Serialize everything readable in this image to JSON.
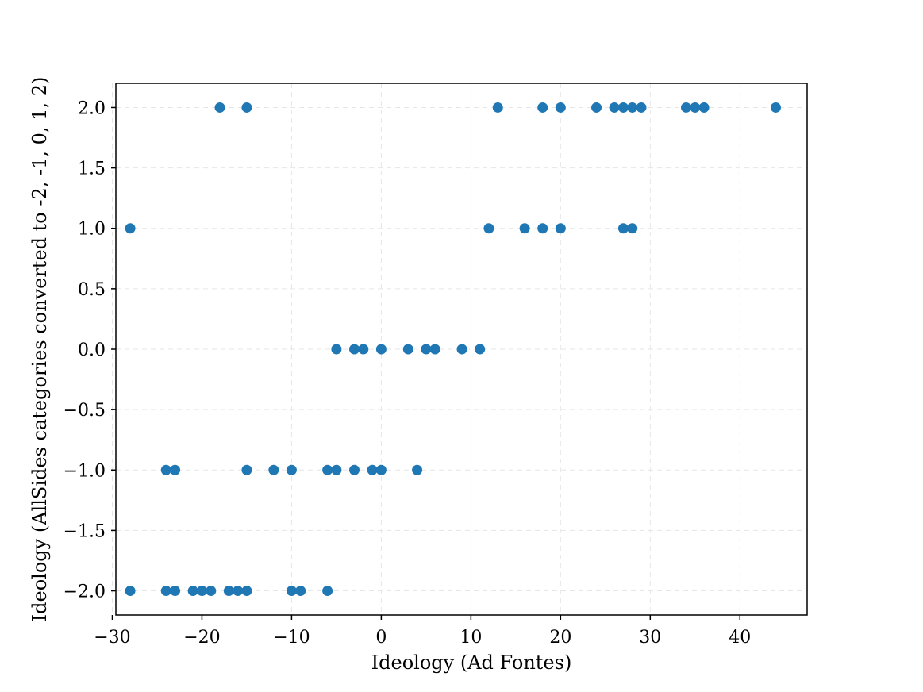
{
  "chart_data": {
    "type": "scatter",
    "title": "",
    "xlabel": "Ideology (Ad Fontes)",
    "ylabel": "Ideology (AllSides categories converted to -2, -1, 0, 1, 2)",
    "xlim": [
      -29.6,
      47.5
    ],
    "ylim": [
      -2.2,
      2.2
    ],
    "xticks": [
      -30,
      -20,
      -10,
      0,
      10,
      20,
      30,
      40
    ],
    "xtick_labels": [
      "−30",
      "−20",
      "−10",
      "0",
      "10",
      "20",
      "30",
      "40"
    ],
    "yticks": [
      -2.0,
      -1.5,
      -1.0,
      -0.5,
      0.0,
      0.5,
      1.0,
      1.5,
      2.0
    ],
    "ytick_labels": [
      "−2.0",
      "−1.5",
      "−1.0",
      "−0.5",
      "0.0",
      "0.5",
      "1.0",
      "1.5",
      "2.0"
    ],
    "grid": true,
    "marker_color": "#1f77b4",
    "series": [
      {
        "points": [
          [
            -18,
            2
          ],
          [
            -15,
            2
          ],
          [
            13,
            2
          ],
          [
            18,
            2
          ],
          [
            20,
            2
          ],
          [
            24,
            2
          ],
          [
            26,
            2
          ],
          [
            27,
            2
          ],
          [
            28,
            2
          ],
          [
            29,
            2
          ],
          [
            34,
            2
          ],
          [
            35,
            2
          ],
          [
            36,
            2
          ],
          [
            44,
            2
          ],
          [
            -28,
            1
          ],
          [
            12,
            1
          ],
          [
            16,
            1
          ],
          [
            18,
            1
          ],
          [
            20,
            1
          ],
          [
            27,
            1
          ],
          [
            28,
            1
          ],
          [
            -5,
            0
          ],
          [
            -3,
            0
          ],
          [
            -2,
            0
          ],
          [
            0,
            0
          ],
          [
            3,
            0
          ],
          [
            5,
            0
          ],
          [
            6,
            0
          ],
          [
            9,
            0
          ],
          [
            11,
            0
          ],
          [
            -24,
            -1
          ],
          [
            -23,
            -1
          ],
          [
            -15,
            -1
          ],
          [
            -12,
            -1
          ],
          [
            -10,
            -1
          ],
          [
            -6,
            -1
          ],
          [
            -5,
            -1
          ],
          [
            -3,
            -1
          ],
          [
            -1,
            -1
          ],
          [
            0,
            -1
          ],
          [
            4,
            -1
          ],
          [
            -28,
            -2
          ],
          [
            -24,
            -2
          ],
          [
            -23,
            -2
          ],
          [
            -21,
            -2
          ],
          [
            -20,
            -2
          ],
          [
            -19,
            -2
          ],
          [
            -17,
            -2
          ],
          [
            -16,
            -2
          ],
          [
            -15,
            -2
          ],
          [
            -10,
            -2
          ],
          [
            -9,
            -2
          ],
          [
            -6,
            -2
          ]
        ]
      }
    ]
  }
}
